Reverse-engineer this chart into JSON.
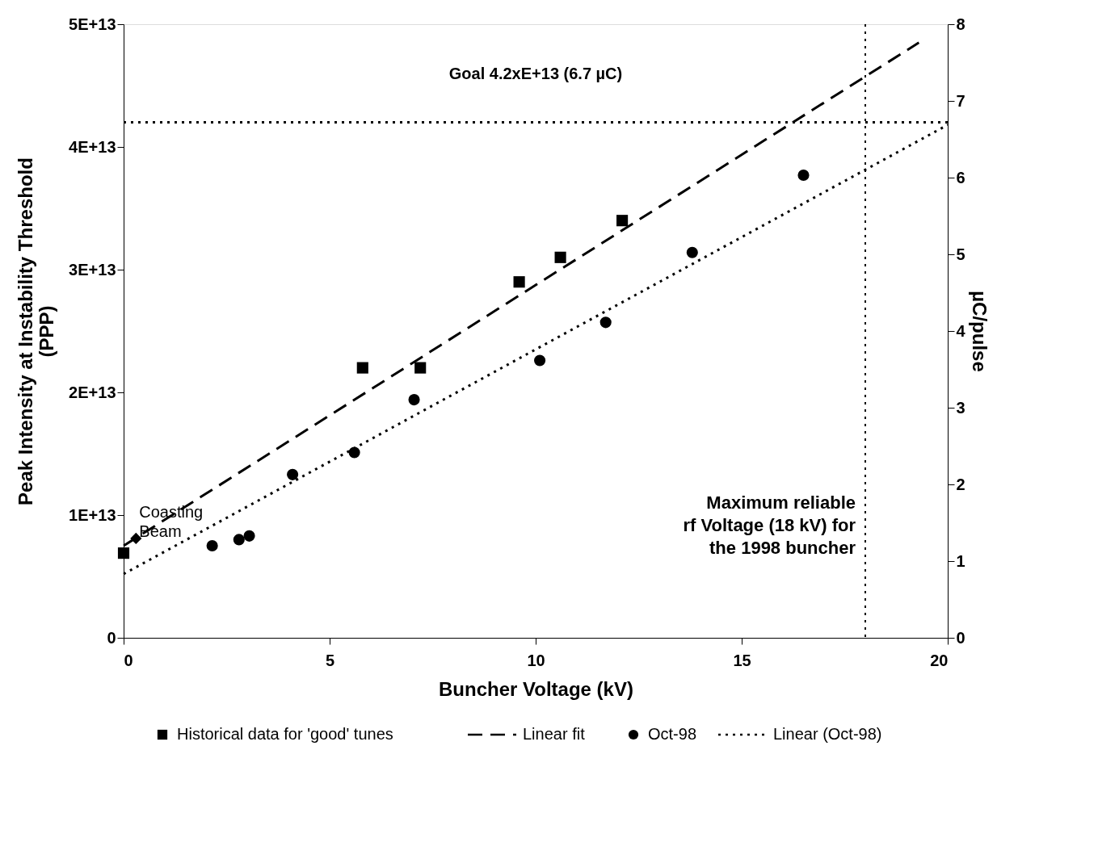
{
  "chart_data": {
    "type": "scatter",
    "xlabel": "Buncher Voltage (kV)",
    "ylabel": "Peak Intensity at Instability Threshold\n(PPP)",
    "y2label": "µC/pulse",
    "xlim": [
      0,
      20
    ],
    "xticks": [
      0,
      5,
      10,
      15,
      20
    ],
    "ylim": [
      0,
      50000000000000.0
    ],
    "yticks": [
      0,
      {
        "value": 10000000000000.0,
        "label": "1E+13"
      },
      {
        "value": 20000000000000.0,
        "label": "2E+13"
      },
      {
        "value": 30000000000000.0,
        "label": "3E+13"
      },
      {
        "value": 40000000000000.0,
        "label": "4E+13"
      },
      {
        "value": 50000000000000.0,
        "label": "5E+13"
      }
    ],
    "y2lim": [
      0,
      8
    ],
    "y2ticks": [
      0,
      1,
      2,
      3,
      4,
      5,
      6,
      7,
      8
    ],
    "grid": false,
    "legend": "bottom",
    "series": [
      {
        "name": "Historical data for 'good' tunes",
        "marker": "square",
        "color": "#000000",
        "x": [
          0,
          5.8,
          7.2,
          9.6,
          10.6,
          12.1
        ],
        "values": [
          6900000000000.0,
          22000000000000.0,
          22000000000000.0,
          29000000000000.0,
          31000000000000.0,
          34000000000000.0
        ]
      },
      {
        "name": "Linear fit",
        "type": "line",
        "line_style": "dashed",
        "marker": "none",
        "color": "#000000",
        "x": [
          0,
          19.3
        ],
        "values": [
          7500000000000.0,
          48500000000000.0
        ]
      },
      {
        "name": "Oct-98",
        "marker": "circle",
        "color": "#000000",
        "x": [
          2.15,
          2.8,
          3.05,
          4.1,
          5.6,
          7.05,
          10.1,
          11.7,
          13.8,
          16.5
        ],
        "values": [
          7500000000000.0,
          8000000000000.0,
          8300000000000.0,
          13300000000000.0,
          15100000000000.0,
          19400000000000.0,
          22600000000000.0,
          25700000000000.0,
          31400000000000.0,
          37700000000000.0
        ]
      },
      {
        "name": "Linear (Oct-98)",
        "type": "line",
        "line_style": "dotted",
        "marker": "none",
        "color": "#000000",
        "x": [
          0,
          20
        ],
        "values": [
          5200000000000.0,
          41800000000000.0
        ]
      },
      {
        "marker": "diamond",
        "color": "#000000",
        "x": [
          0.3
        ],
        "values": [
          8100000000000.0
        ]
      }
    ],
    "ref_lines": [
      {
        "axis": "y",
        "value": 42000000000000.0,
        "label": "Goal 4.2xE+13 (6.7 µC)",
        "line_style": "dotted",
        "color": "#000000"
      },
      {
        "axis": "x",
        "value": 18,
        "label": "Maximum reliable\nrf Voltage (18 kV) for\nthe 1998 buncher",
        "line_style": "dotted",
        "color": "#000000"
      }
    ],
    "annotations": [
      {
        "text": "Coasting\nBeam",
        "x": 0.3,
        "y": 8100000000000.0
      }
    ]
  }
}
